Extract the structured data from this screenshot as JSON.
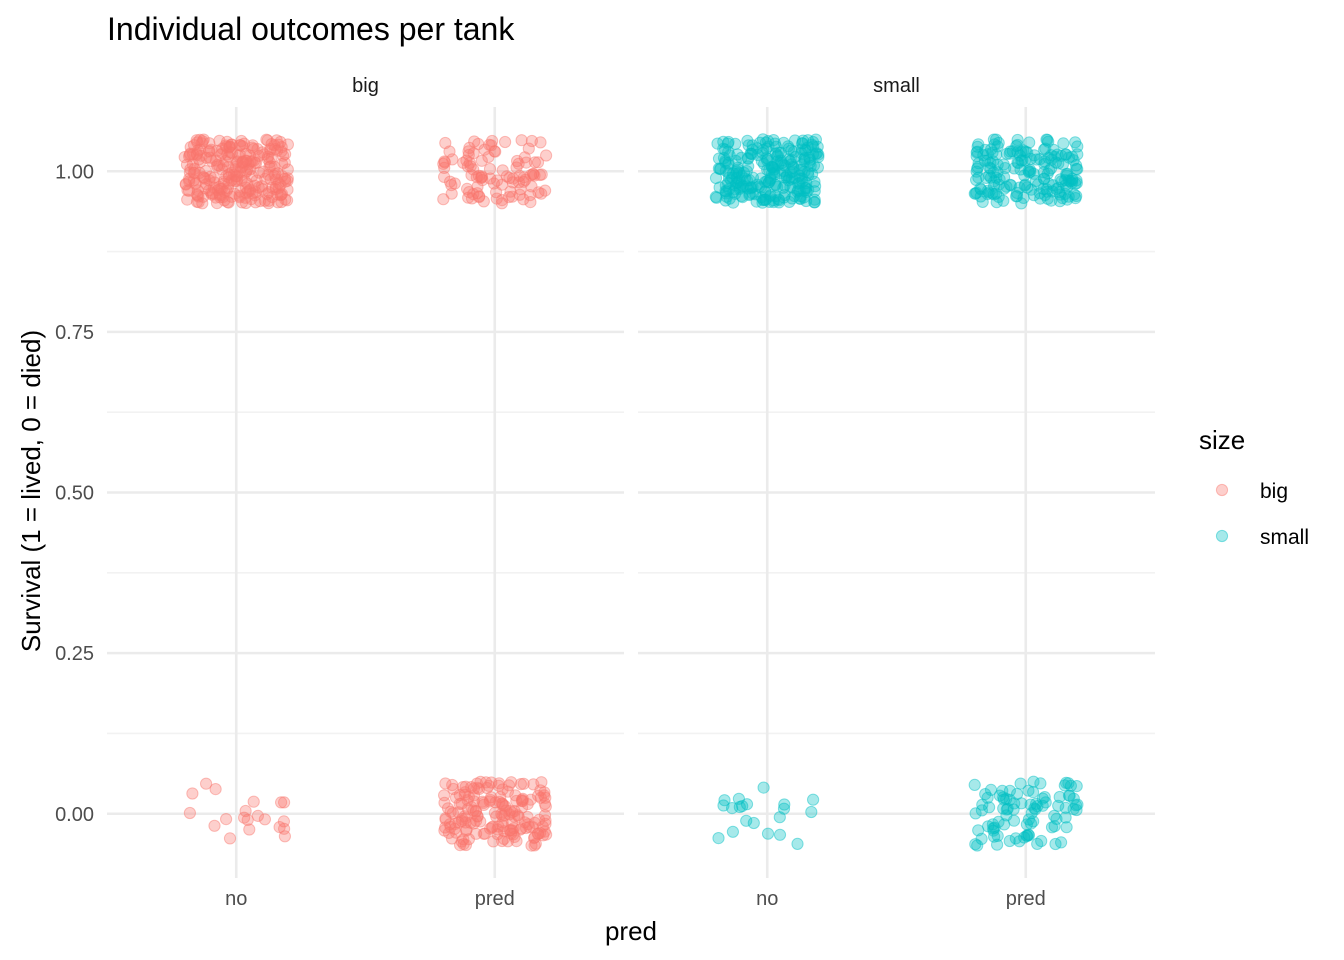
{
  "chart_data": {
    "type": "scatter",
    "title": "Individual outcomes per tank",
    "xlabel": "pred",
    "ylabel": "Survival (1 = lived, 0 = died)",
    "x_categories": [
      "no",
      "pred"
    ],
    "y_ticks": [
      "0.00",
      "0.25",
      "0.50",
      "0.75",
      "1.00"
    ],
    "y_tick_values": [
      0,
      0.25,
      0.5,
      0.75,
      1
    ],
    "ylim": [
      -0.1,
      1.1
    ],
    "facets": [
      "big",
      "small"
    ],
    "grid": true,
    "jitter": {
      "x_width": 0.2,
      "y_height": 0.05
    },
    "point_alpha": 0.35,
    "legend": {
      "title": "size",
      "placement": "right",
      "entries": [
        {
          "label": "big",
          "color": "#F8766D"
        },
        {
          "label": "small",
          "color": "#00BFC4"
        }
      ]
    },
    "series": [
      {
        "name": "big",
        "facet": "big",
        "color": "#F8766D",
        "counts": {
          "no": {
            "lived": 250,
            "died": 20
          },
          "pred": {
            "lived": 100,
            "died": 170
          }
        }
      },
      {
        "name": "small",
        "facet": "small",
        "color": "#00BFC4",
        "counts": {
          "no": {
            "lived": 250,
            "died": 20
          },
          "pred": {
            "lived": 180,
            "died": 90
          }
        }
      }
    ]
  }
}
